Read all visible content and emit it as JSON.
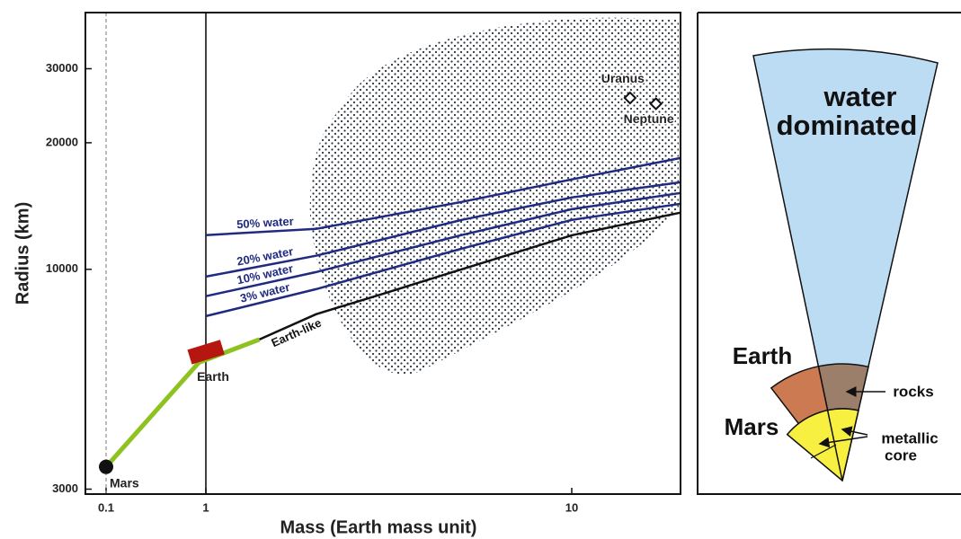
{
  "chart_data": {
    "type": "line",
    "x_label": "Mass (Earth mass unit)",
    "y_label": "Radius (km)",
    "x_log": true,
    "y_log": true,
    "xlim": [
      0.06,
      20
    ],
    "ylim": [
      2920,
      40800
    ],
    "xticks": [
      0.1,
      1,
      10
    ],
    "yticks": [
      3000,
      10000,
      20000,
      30000
    ],
    "vlines": [
      {
        "x": 0.1,
        "style": "dashed"
      },
      {
        "x": 1,
        "style": "solid"
      }
    ],
    "series": [
      {
        "name": "50% water",
        "color": "#1f2a80",
        "x": [
          1,
          2,
          5,
          10,
          20
        ],
        "values": [
          12060,
          12480,
          14460,
          16360,
          18400
        ]
      },
      {
        "name": "20% water",
        "color": "#1f2a80",
        "x": [
          1,
          2,
          5,
          10,
          20
        ],
        "values": [
          9610,
          10770,
          13110,
          14820,
          16110
        ]
      },
      {
        "name": "10% water",
        "color": "#1f2a80",
        "x": [
          1,
          2,
          5,
          10,
          20
        ],
        "values": [
          8630,
          9850,
          12060,
          13900,
          15190
        ]
      },
      {
        "name": "3% water",
        "color": "#1f2a80",
        "x": [
          1,
          2,
          5,
          10,
          20
        ],
        "values": [
          7740,
          8970,
          11200,
          13110,
          14320
        ]
      },
      {
        "name": "Earth-like",
        "color": "#111111",
        "x": [
          1.4,
          2,
          3,
          5,
          10,
          20
        ],
        "values": [
          6810,
          7820,
          8710,
          10000,
          12050,
          13640
        ]
      },
      {
        "color": "#8dc21f",
        "x": [
          0.1,
          0.85,
          1.4
        ],
        "values": [
          3390,
          6000,
          6810
        ]
      }
    ],
    "points": [
      {
        "name": "Mars",
        "x": 0.1,
        "y": 3390,
        "marker": "circle",
        "color": "#111111"
      },
      {
        "name": "Earth",
        "x": 1,
        "y": 6371,
        "marker": "rect",
        "color": "#b5160f"
      },
      {
        "name": "Uranus",
        "x": 14.5,
        "y": 25559,
        "marker": "diamond",
        "color": "#111111"
      },
      {
        "name": "Neptune",
        "x": 17.1,
        "y": 24764,
        "marker": "diamond",
        "color": "#111111"
      }
    ]
  },
  "diagram": {
    "water_label": [
      "water",
      "dominated"
    ],
    "earth_label": "Earth",
    "mars_label": "Mars",
    "rocks_label": "rocks",
    "core_label": [
      "metallic",
      "core"
    ]
  }
}
